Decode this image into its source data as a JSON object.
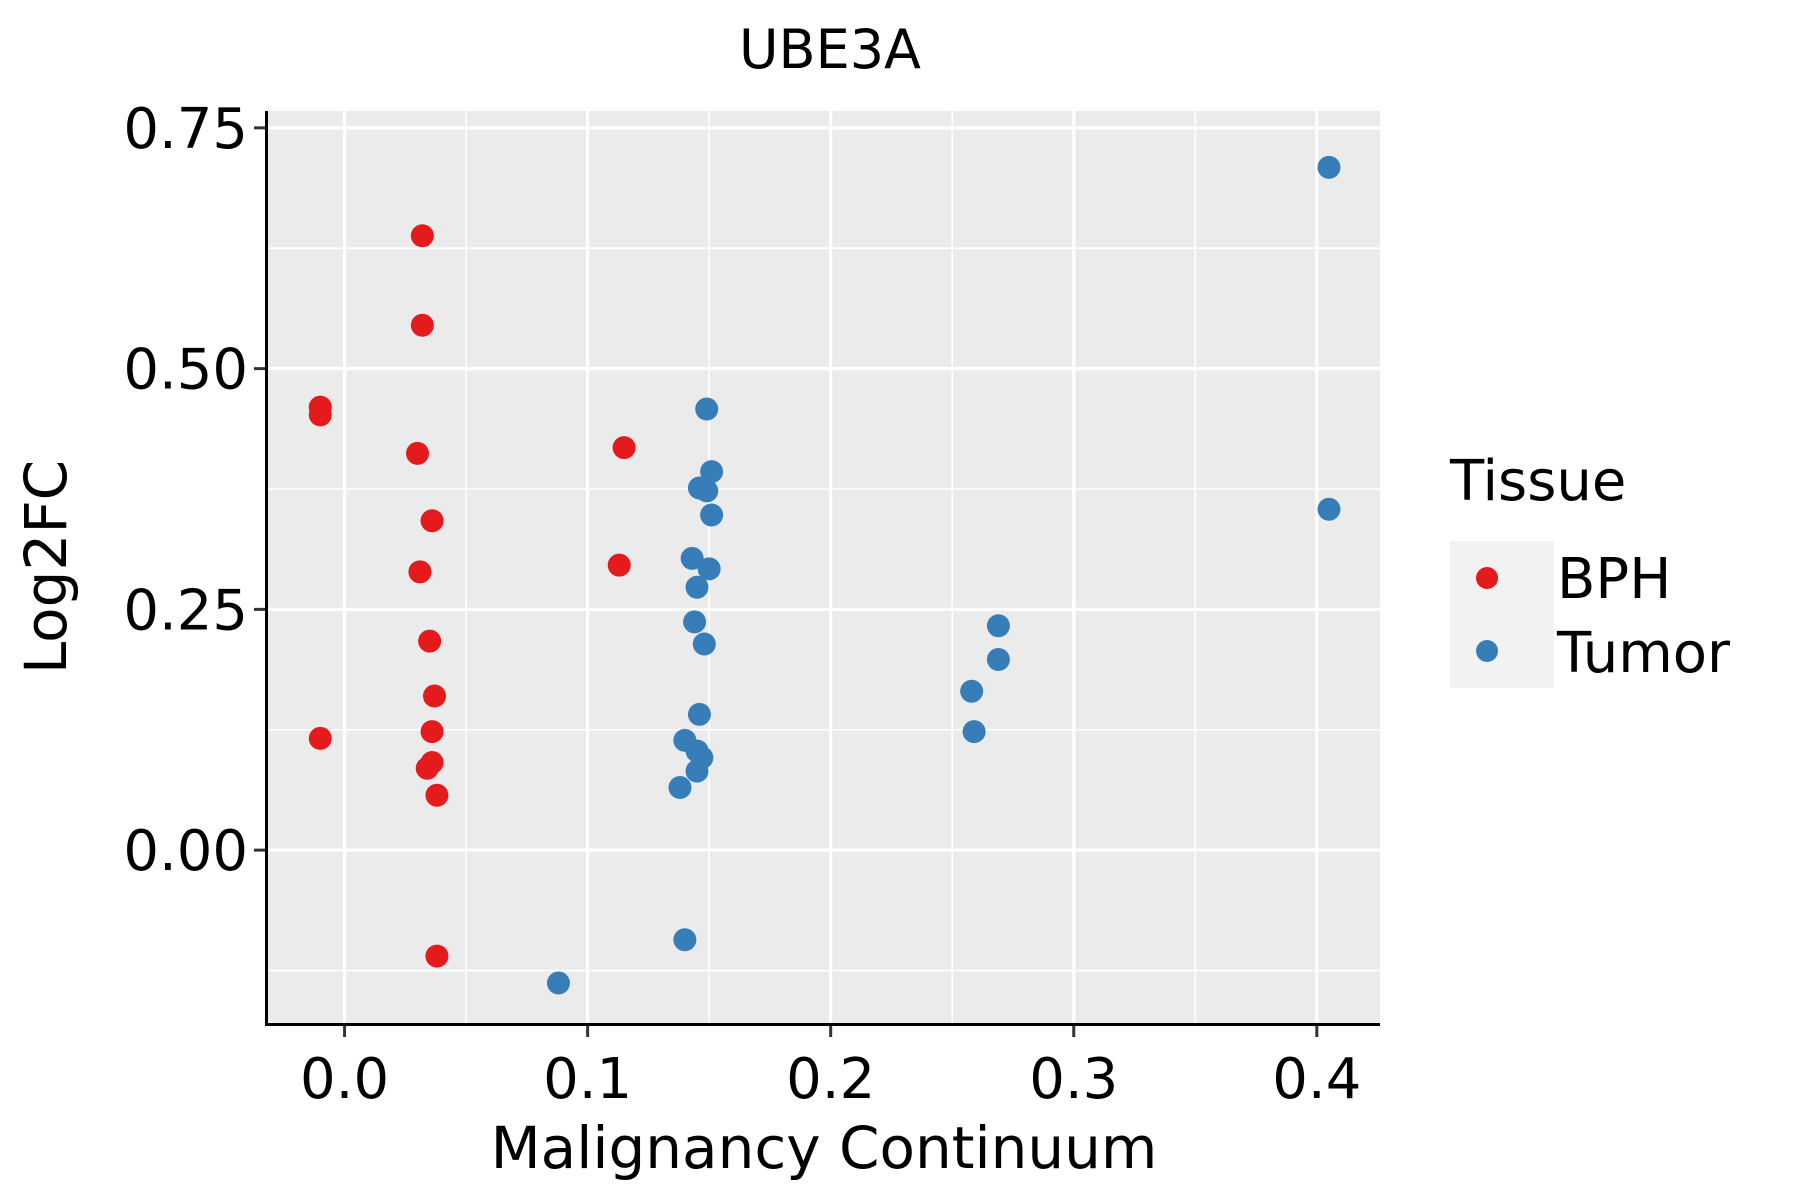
{
  "chart_data": {
    "type": "scatter",
    "title": "UBE3A",
    "xlabel": "Malignancy Continuum",
    "ylabel": "Log2FC",
    "xlim": [
      -0.0315,
      0.426
    ],
    "ylim": [
      -0.1795,
      0.7675
    ],
    "x_ticks": [
      0.0,
      0.1,
      0.2,
      0.3,
      0.4
    ],
    "x_tick_labels": [
      "0.0",
      "0.1",
      "0.2",
      "0.3",
      "0.4"
    ],
    "y_ticks": [
      0.0,
      0.25,
      0.5,
      0.75
    ],
    "y_tick_labels": [
      "0.00",
      "0.25",
      "0.50",
      "0.75"
    ],
    "x_minor": [
      0.05,
      0.15,
      0.25,
      0.35
    ],
    "y_minor": [
      -0.125,
      0.125,
      0.375,
      0.625
    ],
    "grid": true,
    "panel_background": "#EBEBEB",
    "grid_color": "#FFFFFF",
    "legend": {
      "title": "Tissue",
      "position": "right",
      "key_background": "#F2F2F2",
      "entries": [
        {
          "name": "BPH",
          "color": "#E41A1C"
        },
        {
          "name": "Tumor",
          "color": "#377EB8"
        }
      ]
    },
    "series": [
      {
        "name": "BPH",
        "color": "#E41A1C",
        "points": [
          {
            "x": -0.01,
            "y": 0.46
          },
          {
            "x": -0.01,
            "y": 0.452
          },
          {
            "x": -0.01,
            "y": 0.116
          },
          {
            "x": 0.032,
            "y": 0.638
          },
          {
            "x": 0.032,
            "y": 0.545
          },
          {
            "x": 0.03,
            "y": 0.412
          },
          {
            "x": 0.036,
            "y": 0.342
          },
          {
            "x": 0.031,
            "y": 0.289
          },
          {
            "x": 0.035,
            "y": 0.217
          },
          {
            "x": 0.037,
            "y": 0.16
          },
          {
            "x": 0.036,
            "y": 0.123
          },
          {
            "x": 0.036,
            "y": 0.091
          },
          {
            "x": 0.034,
            "y": 0.085
          },
          {
            "x": 0.038,
            "y": 0.057
          },
          {
            "x": 0.038,
            "y": -0.11
          },
          {
            "x": 0.115,
            "y": 0.418
          },
          {
            "x": 0.113,
            "y": 0.296
          }
        ]
      },
      {
        "name": "Tumor",
        "color": "#377EB8",
        "points": [
          {
            "x": 0.149,
            "y": 0.458
          },
          {
            "x": 0.151,
            "y": 0.393
          },
          {
            "x": 0.146,
            "y": 0.376
          },
          {
            "x": 0.149,
            "y": 0.373
          },
          {
            "x": 0.151,
            "y": 0.348
          },
          {
            "x": 0.143,
            "y": 0.303
          },
          {
            "x": 0.15,
            "y": 0.292
          },
          {
            "x": 0.145,
            "y": 0.273
          },
          {
            "x": 0.144,
            "y": 0.237
          },
          {
            "x": 0.148,
            "y": 0.214
          },
          {
            "x": 0.146,
            "y": 0.141
          },
          {
            "x": 0.14,
            "y": 0.114
          },
          {
            "x": 0.145,
            "y": 0.103
          },
          {
            "x": 0.147,
            "y": 0.096
          },
          {
            "x": 0.145,
            "y": 0.082
          },
          {
            "x": 0.138,
            "y": 0.065
          },
          {
            "x": 0.14,
            "y": -0.093
          },
          {
            "x": 0.088,
            "y": -0.138
          },
          {
            "x": 0.269,
            "y": 0.233
          },
          {
            "x": 0.269,
            "y": 0.198
          },
          {
            "x": 0.258,
            "y": 0.165
          },
          {
            "x": 0.259,
            "y": 0.123
          },
          {
            "x": 0.405,
            "y": 0.709
          },
          {
            "x": 0.405,
            "y": 0.354
          }
        ]
      }
    ]
  }
}
